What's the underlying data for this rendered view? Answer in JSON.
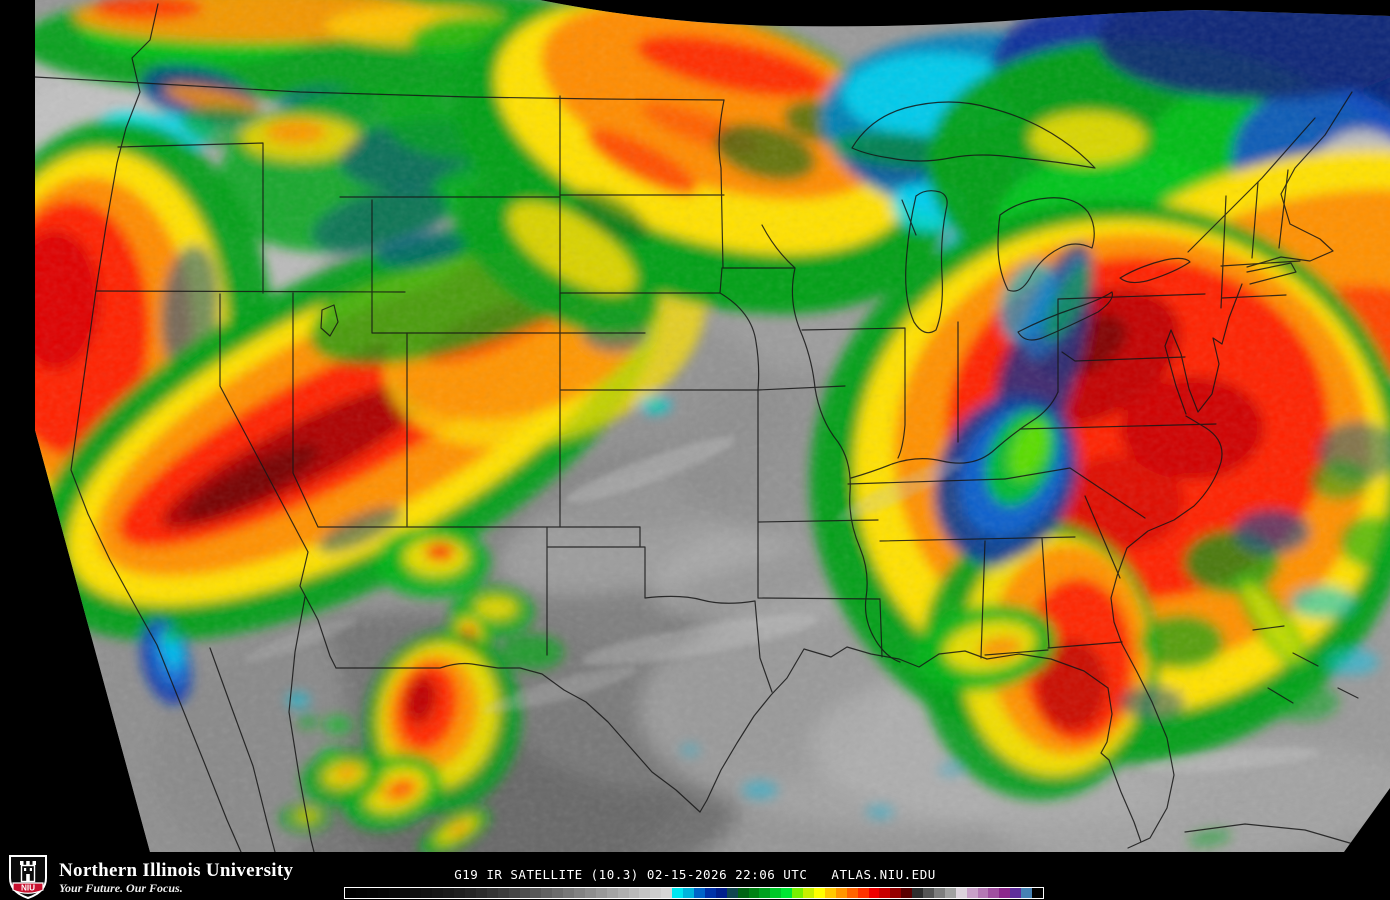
{
  "map": {
    "name": "GOES-19 color-enhanced infrared satellite image of the continental United States",
    "description": "IR brightness-temperature imagery: gray shades are warm low clouds and ground, cyan-blue-green-yellow-orange-red ramp marks progressively colder cloud tops; black regions are outside the satellite scan sector; state and coastline borders overlaid in black",
    "enhancement_colors": {
      "base_gray": "#969696",
      "cyan": "#00E6F0",
      "navy": "#001E8C",
      "green": "#00A014",
      "yellow": "#FFE100",
      "orange": "#FF9100",
      "red": "#FF2300",
      "dark_red": "#960000",
      "purple": "#A050A0",
      "steel_blue": "#4682B4"
    }
  },
  "footer": {
    "logo": {
      "acronym": "NIU",
      "institution": "Northern Illinois University",
      "tagline": "Your Future. Our Focus.",
      "shield_red": "#C8102E"
    },
    "caption": "G19 IR SATELLITE (10.3) 02-15-2026 22:06 UTC   ATLAS.NIU.EDU",
    "colorbar": {
      "segments": [
        "#000000",
        "#020202",
        "#040404",
        "#060606",
        "#090909",
        "#0C0C0C",
        "#0F0F0F",
        "#121212",
        "#161616",
        "#1A1A1A",
        "#1F1F1F",
        "#252525",
        "#2C2C2C",
        "#343434",
        "#3C3C3C",
        "#454545",
        "#4E4E4E",
        "#585858",
        "#626262",
        "#6C6C6C",
        "#777777",
        "#828282",
        "#8D8D8D",
        "#989898",
        "#A3A3A3",
        "#AEAEAE",
        "#B9B9B9",
        "#C4C4C4",
        "#CECECE",
        "#D6D6D6",
        "#00E6F0",
        "#00B4DC",
        "#0064C8",
        "#0032A8",
        "#001E8C",
        "#0F4650",
        "#006414",
        "#008214",
        "#00A01E",
        "#00C828",
        "#00E632",
        "#78F000",
        "#C8F000",
        "#FFFF00",
        "#FFC800",
        "#FF9600",
        "#FF6400",
        "#FF3200",
        "#F00000",
        "#C80000",
        "#960000",
        "#5A0000",
        "#2D2D2D",
        "#555555",
        "#7D7D7D",
        "#A0A0A0",
        "#DCD2DC",
        "#C8A0C8",
        "#B478B4",
        "#A050A0",
        "#8C288C",
        "#5F2E9B",
        "#4682B4",
        "#000000"
      ]
    }
  }
}
